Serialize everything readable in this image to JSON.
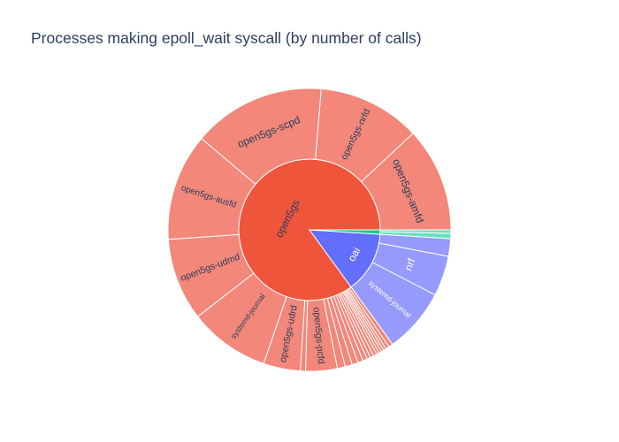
{
  "chart_data": {
    "type": "sunburst",
    "title": "Processes making epoll_wait syscall (by number of calls)",
    "root_total": 100,
    "colors": {
      "open5gs": "#ef553b",
      "open5gs_child": "#f2877a",
      "oai": "#636efa",
      "oai_child": "#959afc",
      "third": "#00cc96",
      "third_child": "#66e0c0"
    },
    "groups": [
      {
        "name": "open5gs",
        "value": 85.0,
        "color": "#ef553b",
        "child_color": "#f2877a",
        "children": [
          {
            "name": "open5gs-amfd",
            "value": 11.9
          },
          {
            "name": "open5gs-nrfd",
            "value": 11.7
          },
          {
            "name": "open5gs-scpd",
            "value": 15.1
          },
          {
            "name": "open5gs-ausfd",
            "value": 12.2
          },
          {
            "name": "open5gs-udmd",
            "value": 9.4
          },
          {
            "name": "systemd-journal",
            "value": 9.2
          },
          {
            "name": "open5gs-udrd",
            "value": 4.2
          },
          {
            "name": "",
            "value": 0.6
          },
          {
            "name": "open5gs-pcfd",
            "value": 3.6
          },
          {
            "name": "",
            "value": 0.9
          },
          {
            "name": "",
            "value": 0.8
          },
          {
            "name": "",
            "value": 0.7
          },
          {
            "name": "",
            "value": 0.6
          },
          {
            "name": "",
            "value": 0.5
          },
          {
            "name": "",
            "value": 0.4
          },
          {
            "name": "",
            "value": 0.4
          },
          {
            "name": "",
            "value": 0.4
          },
          {
            "name": "",
            "value": 0.3
          },
          {
            "name": "",
            "value": 0.3
          },
          {
            "name": "",
            "value": 0.3
          },
          {
            "name": "",
            "value": 0.3
          },
          {
            "name": "",
            "value": 0.4
          },
          {
            "name": "",
            "value": 0.5
          }
        ]
      },
      {
        "name": "oai",
        "value": 14.0,
        "color": "#636efa",
        "child_color": "#959afc",
        "children": [
          {
            "name": "systemd-journal",
            "value": 7.4
          },
          {
            "name": "nrf",
            "value": 4.6
          },
          {
            "name": "",
            "value": 2.0
          }
        ]
      },
      {
        "name": "",
        "value": 1.0,
        "color": "#00cc96",
        "child_color": "#66e0c0",
        "children": [
          {
            "name": "",
            "value": 0.6
          },
          {
            "name": "",
            "value": 0.4
          }
        ]
      }
    ]
  }
}
